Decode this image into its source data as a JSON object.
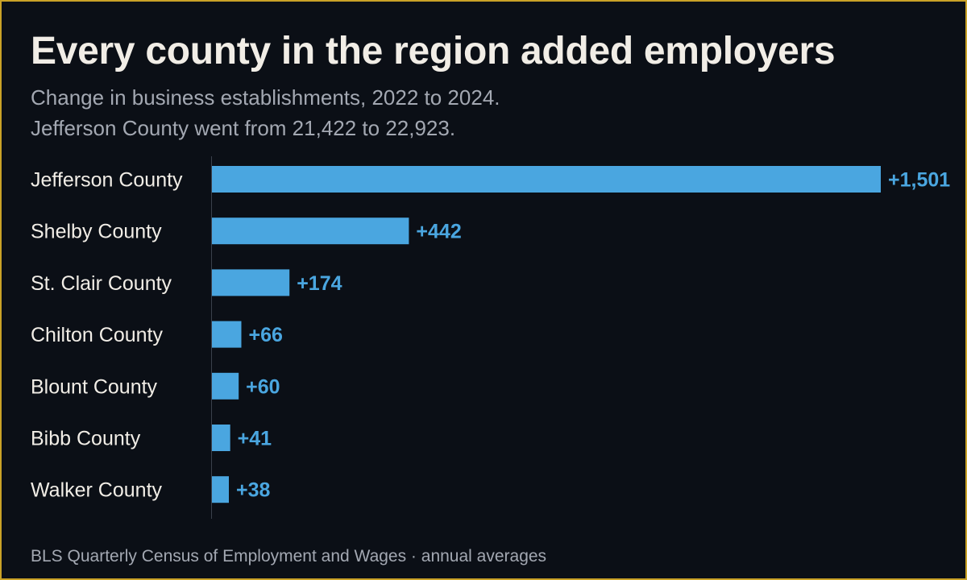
{
  "title": "Every county in the region added employers",
  "subtitle": "Change in business establishments, 2022 to 2024. Jefferson County went from 21,422 to 22,923.",
  "source": "BLS Quarterly Census of Employment and Wages · annual averages",
  "colors": {
    "background": "#0b0f16",
    "border": "#c9a227",
    "bar": "#4aa6e0",
    "value_label": "#4aa6e0",
    "category_label": "#f1ede6",
    "muted_text": "#a3a8b2",
    "axis_line": "#3a404b"
  },
  "chart_data": {
    "type": "bar",
    "orientation": "horizontal",
    "categories": [
      "Jefferson County",
      "Shelby County",
      "St. Clair County",
      "Chilton County",
      "Blount County",
      "Bibb County",
      "Walker County"
    ],
    "values": [
      1501,
      442,
      174,
      66,
      60,
      41,
      38
    ],
    "value_labels": [
      "+1,501",
      "+442",
      "+174",
      "+66",
      "+60",
      "+41",
      "+38"
    ],
    "xlim": [
      0,
      1501
    ],
    "grid": false,
    "legend": "none"
  }
}
